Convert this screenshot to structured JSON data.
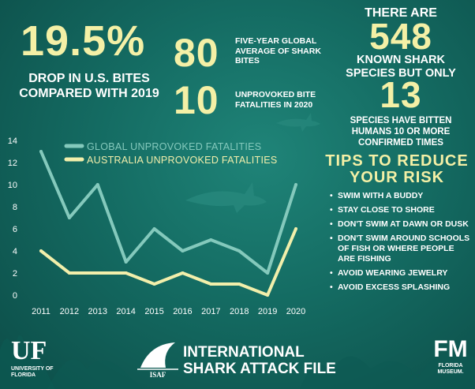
{
  "stats": {
    "drop_value": "19.5%",
    "drop_caption": "DROP IN U.S. BITES COMPARED WITH 2019",
    "avg_value": "80",
    "avg_caption": "FIVE-YEAR GLOBAL AVERAGE OF SHARK BITES",
    "fatal_value": "10",
    "fatal_caption": "UNPROVOKED BITE FATALITIES IN 2020"
  },
  "species": {
    "head": "THERE ARE",
    "count": "548",
    "mid": "KNOWN SHARK SPECIES BUT ONLY",
    "bitten": "13",
    "tail": "SPECIES HAVE BITTEN HUMANS 10 OR MORE CONFIRMED TIMES"
  },
  "tips": {
    "title": "TIPS TO REDUCE YOUR RISK",
    "items": [
      "SWIM WITH A BUDDY",
      "STAY CLOSE TO SHORE",
      "DON'T SWIM AT DAWN OR DUSK",
      "DON'T SWIM AROUND SCHOOLS OF FISH OR WHERE PEOPLE ARE FISHING",
      "AVOID WEARING JEWELRY",
      "AVOID EXCESS SPLASHING"
    ]
  },
  "footer": {
    "uf_mark": "UF",
    "uf_sub": "UNIVERSITY of FLORIDA",
    "isaf_abbr": "ISAF",
    "isaf_title_1": "INTERNATIONAL",
    "isaf_title_2": "SHARK ATTACK FILE",
    "fm_mark": "FM",
    "fm_sub": "FLORIDA MUSEUM."
  },
  "colors": {
    "global_line": "#84c9bc",
    "australia_line": "#f2efab",
    "axis_text": "#ffffff",
    "accent_yellow": "#f4f0a6"
  },
  "chart_data": {
    "type": "line",
    "x": [
      2011,
      2012,
      2013,
      2014,
      2015,
      2016,
      2017,
      2018,
      2019,
      2020
    ],
    "series": [
      {
        "name": "GLOBAL UNPROVOKED FATALITIES",
        "values": [
          13,
          7,
          10,
          3,
          6,
          4,
          5,
          4,
          2,
          10
        ]
      },
      {
        "name": "AUSTRALIA UNPROVOKED FATALITIES",
        "values": [
          4,
          2,
          2,
          2,
          1,
          2,
          1,
          1,
          0,
          6
        ]
      }
    ],
    "ylim": [
      0,
      14
    ],
    "yticks": [
      0,
      2,
      4,
      6,
      8,
      10,
      12,
      14
    ],
    "xlabel": "",
    "ylabel": "",
    "grid": false,
    "legend": "top-left"
  }
}
